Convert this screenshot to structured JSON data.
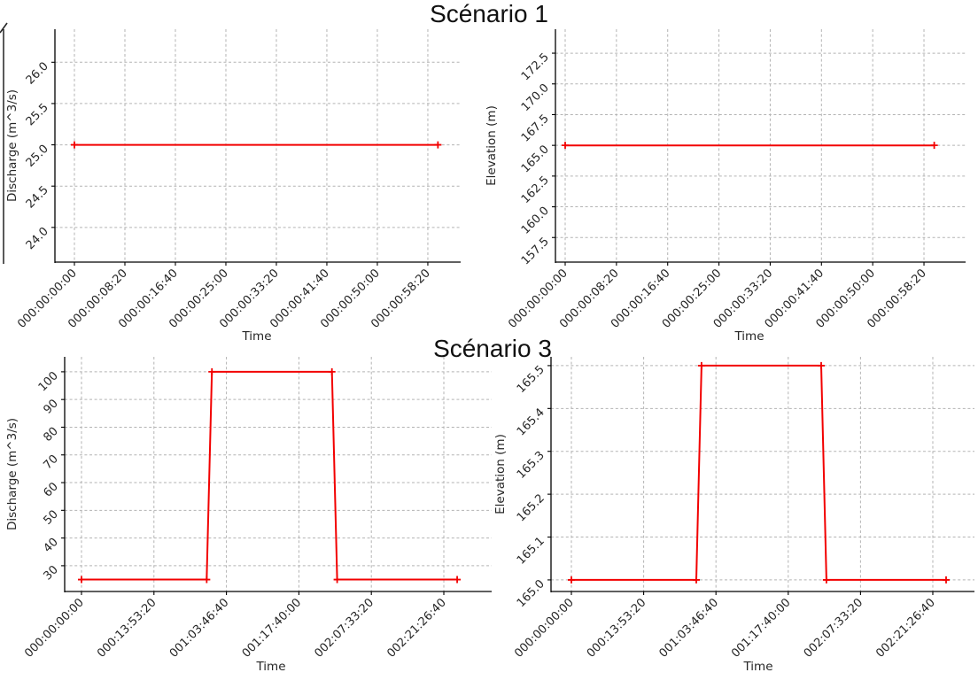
{
  "titles": {
    "scenario1": "Scénario 1",
    "scenario3": "Scénario 3"
  },
  "colors": {
    "line": "#f20000",
    "grid": "#b3b3b3",
    "spine": "#000000",
    "text": "#262626",
    "background": "#ffffff"
  },
  "chart_data": [
    {
      "id": "s1_discharge",
      "type": "line",
      "row_title": "Scénario 1",
      "xlabel": "Time",
      "ylabel": "Discharge (m^3/s)",
      "x_ticks": {
        "values": [
          0,
          500,
          1000,
          1500,
          2000,
          2500,
          3000,
          3500
        ],
        "labels": [
          "000:00:00:00",
          "000:00:08:20",
          "000:00:16:40",
          "000:00:25:00",
          "000:00:33:20",
          "000:00:41:40",
          "000:00:50:00",
          "000:00:58:20"
        ]
      },
      "y_ticks": {
        "values": [
          24.0,
          24.5,
          25.0,
          25.5,
          26.0
        ],
        "labels": [
          "24.0",
          "24.5",
          "25.0",
          "25.5",
          "26.0"
        ]
      },
      "xlim": [
        -193,
        3825
      ],
      "ylim": [
        23.58,
        26.4
      ],
      "grid": true,
      "series": [
        {
          "name": "Discharge",
          "points": [
            [
              0,
              25
            ],
            [
              3600,
              25
            ]
          ]
        }
      ]
    },
    {
      "id": "s1_elevation",
      "type": "line",
      "row_title": "Scénario 1",
      "xlabel": "Time",
      "ylabel": "Elevation (m)",
      "x_ticks": {
        "values": [
          0,
          500,
          1000,
          1500,
          2000,
          2500,
          3000,
          3500
        ],
        "labels": [
          "000:00:00:00",
          "000:00:08:20",
          "000:00:16:40",
          "000:00:25:00",
          "000:00:33:20",
          "000:00:41:40",
          "000:00:50:00",
          "000:00:58:20"
        ]
      },
      "y_ticks": {
        "values": [
          157.5,
          160.0,
          162.5,
          165.0,
          167.5,
          170.0,
          172.5
        ],
        "labels": [
          "157.5",
          "160.0",
          "162.5",
          "165.0",
          "167.5",
          "170.0",
          "172.5"
        ]
      },
      "xlim": [
        -95,
        3906
      ],
      "ylim": [
        155.5,
        174.45
      ],
      "grid": true,
      "series": [
        {
          "name": "Elevation",
          "points": [
            [
              0,
              165
            ],
            [
              3600,
              165
            ]
          ]
        }
      ]
    },
    {
      "id": "s3_discharge",
      "type": "line",
      "row_title": "Scénario 3",
      "xlabel": "Time",
      "ylabel": "Discharge (m^3/s)",
      "x_ticks": {
        "values": [
          0,
          50000,
          100000,
          150000,
          200000,
          250000
        ],
        "labels": [
          "000:00:00:00",
          "000:13:53:20",
          "001:03:46:40",
          "001:17:40:00",
          "002:07:33:20",
          "002:21:26:40"
        ]
      },
      "y_ticks": {
        "values": [
          30,
          40,
          50,
          60,
          70,
          80,
          90,
          100
        ],
        "labels": [
          "30",
          "40",
          "50",
          "60",
          "70",
          "80",
          "90",
          "100"
        ]
      },
      "xlim": [
        -11600,
        283000
      ],
      "ylim": [
        20.7,
        105.4
      ],
      "grid": true,
      "series": [
        {
          "name": "Discharge",
          "points": [
            [
              0,
              25
            ],
            [
              86400,
              25
            ],
            [
              90000,
              100
            ],
            [
              172800,
              100
            ],
            [
              176400,
              25
            ],
            [
              259200,
              25
            ]
          ]
        }
      ]
    },
    {
      "id": "s3_elevation",
      "type": "line",
      "row_title": "Scénario 3",
      "xlabel": "Time",
      "ylabel": "Elevation (m)",
      "x_ticks": {
        "values": [
          0,
          50000,
          100000,
          150000,
          200000,
          250000
        ],
        "labels": [
          "000:00:00:00",
          "000:13:53:20",
          "001:03:46:40",
          "001:17:40:00",
          "002:07:33:20",
          "002:21:26:40"
        ]
      },
      "y_ticks": {
        "values": [
          165.0,
          165.1,
          165.2,
          165.3,
          165.4,
          165.5
        ],
        "labels": [
          "165.0",
          "165.1",
          "165.2",
          "165.3",
          "165.4",
          "165.5"
        ]
      },
      "xlim": [
        -14090,
        278810
      ],
      "ylim": [
        164.973,
        165.5205
      ],
      "grid": true,
      "series": [
        {
          "name": "Elevation",
          "points": [
            [
              0,
              165.0
            ],
            [
              86400,
              165.0
            ],
            [
              90000,
              165.5
            ],
            [
              172800,
              165.5
            ],
            [
              176400,
              165.0
            ],
            [
              259200,
              165.0
            ]
          ]
        }
      ]
    }
  ]
}
